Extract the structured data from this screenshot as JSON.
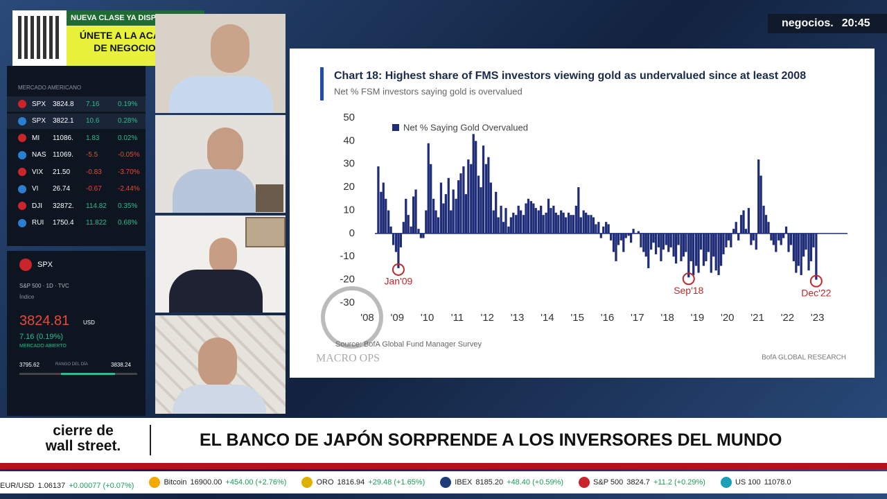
{
  "chart_data": {
    "type": "bar",
    "title": "Chart 18: Highest share of FMS investors viewing gold as undervalued since at least 2008",
    "subtitle": "Net % FSM investors saying gold is overvalued",
    "source": "Source: BofA Global Fund Manager Survey",
    "credit": "BofA GLOBAL RESEARCH",
    "watermark": "MACRO OPS",
    "x": [
      2008.33,
      2008.42,
      2008.5,
      2008.58,
      2008.67,
      2008.75,
      2008.83,
      2008.92,
      2009,
      2009.08,
      2009.17,
      2009.25,
      2009.33,
      2009.42,
      2009.5,
      2009.58,
      2009.67,
      2009.75,
      2009.83,
      2009.92,
      2010,
      2010.08,
      2010.17,
      2010.25,
      2010.33,
      2010.42,
      2010.5,
      2010.58,
      2010.67,
      2010.75,
      2010.83,
      2010.92,
      2011,
      2011.08,
      2011.17,
      2011.25,
      2011.33,
      2011.42,
      2011.5,
      2011.58,
      2011.67,
      2011.75,
      2011.83,
      2011.92,
      2012,
      2012.08,
      2012.17,
      2012.25,
      2012.33,
      2012.42,
      2012.5,
      2012.58,
      2012.67,
      2012.75,
      2012.83,
      2012.92,
      2013,
      2013.08,
      2013.17,
      2013.25,
      2013.33,
      2013.42,
      2013.5,
      2013.58,
      2013.67,
      2013.75,
      2013.83,
      2013.92,
      2014,
      2014.08,
      2014.17,
      2014.25,
      2014.33,
      2014.42,
      2014.5,
      2014.58,
      2014.67,
      2014.75,
      2014.83,
      2014.92,
      2015,
      2015.08,
      2015.17,
      2015.25,
      2015.33,
      2015.42,
      2015.5,
      2015.58,
      2015.67,
      2015.75,
      2015.83,
      2015.92,
      2016,
      2016.08,
      2016.17,
      2016.25,
      2016.33,
      2016.42,
      2016.5,
      2016.58,
      2016.67,
      2016.75,
      2016.83,
      2016.92,
      2017,
      2017.08,
      2017.17,
      2017.25,
      2017.33,
      2017.42,
      2017.5,
      2017.58,
      2017.67,
      2017.75,
      2017.83,
      2017.92,
      2018,
      2018.08,
      2018.17,
      2018.25,
      2018.33,
      2018.42,
      2018.5,
      2018.58,
      2018.67,
      2018.75,
      2018.83,
      2018.92,
      2019,
      2019.08,
      2019.17,
      2019.25,
      2019.33,
      2019.42,
      2019.5,
      2019.58,
      2019.67,
      2019.75,
      2019.83,
      2019.92,
      2020,
      2020.08,
      2020.17,
      2020.25,
      2020.33,
      2020.42,
      2020.5,
      2020.58,
      2020.67,
      2020.75,
      2020.83,
      2020.92,
      2021,
      2021.08,
      2021.17,
      2021.25,
      2021.33,
      2021.42,
      2021.5,
      2021.58,
      2021.67,
      2021.75,
      2021.83,
      2021.92,
      2022,
      2022.08,
      2022.17,
      2022.25,
      2022.33,
      2022.42,
      2022.5,
      2022.58,
      2022.67,
      2022.75,
      2022.83,
      2022.92
    ],
    "series": [
      {
        "name": "Net % Saying Gold Overvalued",
        "color": "#1f2c78",
        "values": [
          29,
          18,
          22,
          15,
          10,
          3,
          -5,
          -8,
          -15,
          -6,
          5,
          15,
          8,
          3,
          16,
          19,
          2,
          -2,
          -2,
          10,
          39,
          30,
          15,
          10,
          7,
          22,
          13,
          17,
          24,
          10,
          19,
          15,
          23,
          26,
          29,
          17,
          32,
          30,
          43,
          40,
          25,
          20,
          38,
          30,
          33,
          22,
          10,
          18,
          7,
          12,
          5,
          11,
          3,
          7,
          9,
          8,
          12,
          10,
          8,
          13,
          15,
          14,
          13,
          11,
          10,
          12,
          8,
          9,
          15,
          11,
          12,
          9,
          8,
          10,
          9,
          7,
          9,
          8,
          8,
          12,
          20,
          7,
          10,
          9,
          8,
          8,
          7,
          4,
          5,
          -2,
          3,
          5,
          4,
          -3,
          -8,
          -12,
          -5,
          -3,
          -8,
          -2,
          -1,
          -4,
          2,
          0,
          1,
          -6,
          -8,
          -10,
          -15,
          -7,
          -4,
          -9,
          -6,
          -12,
          -7,
          -5,
          -8,
          -6,
          -10,
          -13,
          -5,
          -12,
          -10,
          -8,
          -19,
          -12,
          -18,
          -14,
          -17,
          -7,
          -14,
          -12,
          -8,
          -17,
          -10,
          -16,
          -18,
          -14,
          -9,
          -6,
          -3,
          -6,
          2,
          5,
          -3,
          8,
          10,
          2,
          11,
          -5,
          -3,
          -7,
          32,
          25,
          12,
          8,
          5,
          -3,
          -5,
          -8,
          -3,
          -5,
          -2,
          3,
          -8,
          -5,
          -12,
          -17,
          -14,
          -18,
          -10,
          -7,
          -16,
          -12,
          -6,
          -20
        ]
      }
    ],
    "xlim": [
      2008,
      2024
    ],
    "ylim": [
      -30,
      50
    ],
    "xticks": [
      {
        "value": 2008,
        "label": "'08"
      },
      {
        "value": 2009,
        "label": "'09"
      },
      {
        "value": 2010,
        "label": "'10"
      },
      {
        "value": 2011,
        "label": "'11"
      },
      {
        "value": 2012,
        "label": "'12"
      },
      {
        "value": 2013,
        "label": "'13"
      },
      {
        "value": 2014,
        "label": "'14"
      },
      {
        "value": 2015,
        "label": "'15"
      },
      {
        "value": 2016,
        "label": "'16"
      },
      {
        "value": 2017,
        "label": "'17"
      },
      {
        "value": 2018,
        "label": "'18"
      },
      {
        "value": 2019,
        "label": "'19"
      },
      {
        "value": 2020,
        "label": "'20"
      },
      {
        "value": 2021,
        "label": "'21"
      },
      {
        "value": 2022,
        "label": "'22"
      },
      {
        "value": 2023,
        "label": "'23"
      }
    ],
    "yticks": [
      -30,
      -20,
      -10,
      0,
      10,
      20,
      30,
      40,
      50
    ],
    "legend": "top-left",
    "annotations": [
      {
        "text": "Jan'09",
        "x": 2009,
        "y": -15
      },
      {
        "text": "Sep'18",
        "x": 2018.67,
        "y": -19
      },
      {
        "text": "Dec'22",
        "x": 2022.92,
        "y": -20
      }
    ]
  },
  "promo": {
    "badge": "NUEVA CLASE YA DISPONIBLE",
    "headline": [
      "ÚNETE A LA ACADEMIA",
      "DE NEGOCIOS TV"
    ]
  },
  "channel": {
    "logo": "negocios.",
    "time": "20:45"
  },
  "watchlist": {
    "header": "MERCADO AMERICANO",
    "rows": [
      [
        "SPX",
        "3824.8",
        "7.16",
        "0.19%"
      ],
      [
        "SPX",
        "3822.1",
        "10.6",
        "0.28%"
      ],
      [
        "MI",
        "11086.",
        "1.83",
        "0.02%"
      ],
      [
        "NAS",
        "11069.",
        "-5.5",
        "-0.05%"
      ],
      [
        "VIX",
        "21.50",
        "-0.83",
        "-3.70%"
      ],
      [
        "VI",
        "26.74",
        "-0.67",
        "-2.44%"
      ],
      [
        "DJI",
        "32872.",
        "114.82",
        "0.35%"
      ],
      [
        "RUI",
        "1750.4",
        "11.822",
        "0.68%"
      ]
    ]
  },
  "quote": {
    "symbol": "SPX",
    "name": "S&P 500 · 1D · TVC",
    "kind": "Índice",
    "price": "3824.81",
    "currency": "USD",
    "change": "7.16 (0.19%)",
    "status": "MERCADO ABIERTO",
    "low": "3795.62",
    "range": "RANGO DEL DÍA",
    "high": "3838.24"
  },
  "lower_third": {
    "show": [
      "cierre de",
      "wall street."
    ],
    "headline": "EL BANCO DE JAPÓN SORPRENDE A LOS INVERSORES DEL MUNDO"
  },
  "ticker": [
    {
      "name": "EUR/USD",
      "price": "1.06137",
      "change": "+0.00077 (+0.07%)"
    },
    {
      "name": "Bitcoin",
      "price": "16900.00",
      "change": "+454.00 (+2.76%)"
    },
    {
      "name": "ORO",
      "price": "1816.94",
      "change": "+29.48 (+1.65%)"
    },
    {
      "name": "IBEX",
      "price": "8185.20",
      "change": "+48.40 (+0.59%)"
    },
    {
      "name": "S&P 500",
      "price": "3824.7",
      "change": "+11.2 (+0.29%)"
    },
    {
      "name": "US 100",
      "price": "11078.0",
      "change": ""
    }
  ]
}
